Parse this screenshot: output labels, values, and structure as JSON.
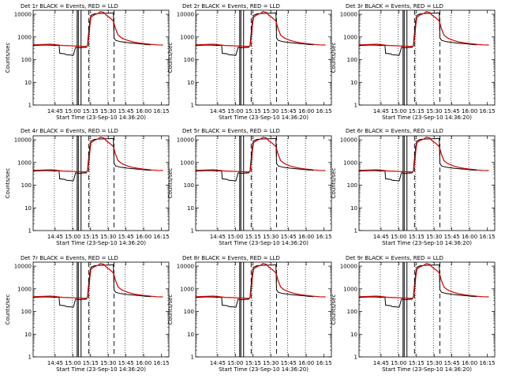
{
  "page": {
    "colors": {
      "events": "#000000",
      "lld": "#d40000",
      "axes": "#000000",
      "background": "#ffffff"
    }
  },
  "chart_data": [
    {
      "type": "line",
      "title": "Det 1r BLACK = Events, RED = LLD"
    },
    {
      "type": "line",
      "title": "Det 2r BLACK = Events, RED = LLD"
    },
    {
      "type": "line",
      "title": "Det 3r BLACK = Events, RED = LLD"
    },
    {
      "type": "line",
      "title": "Det 4r BLACK = Events, RED = LLD"
    },
    {
      "type": "line",
      "title": "Det 5r BLACK = Events, RED = LLD"
    },
    {
      "type": "line",
      "title": "Det 6r BLACK = Events, RED = LLD"
    },
    {
      "type": "line",
      "title": "Det 7r BLACK = Events, RED = LLD"
    },
    {
      "type": "line",
      "title": "Det 8r BLACK = Events, RED = LLD"
    },
    {
      "type": "line",
      "title": "Det 9r BLACK = Events, RED = LLD"
    }
  ],
  "shared": {
    "ylabel": "Counts/sec",
    "xlabel": "Start Time (23-Sep-10 14:36:20)",
    "yscale": "log",
    "ylim": [
      1,
      15000
    ],
    "yticks": [
      1,
      10,
      100,
      1000,
      10000
    ],
    "ytick_labels": [
      "1",
      "10",
      "100",
      "1000",
      "10000"
    ],
    "xlim_minutes": [
      -10,
      105
    ],
    "xticks_minutes": [
      8.67,
      23.67,
      38.67,
      53.67,
      68.67,
      83.67,
      98.67
    ],
    "xtick_labels": [
      "14:45",
      "15:00",
      "15:15",
      "15:30",
      "15:45",
      "16:00",
      "16:15"
    ],
    "dotted_lines_minutes": [
      8,
      23,
      38,
      53,
      68,
      83
    ],
    "dashed_lines_minutes": [
      37,
      58.5
    ],
    "solid_lines_minutes": [
      27.3,
      28.3,
      30.6
    ],
    "events": {
      "x": [
        -10,
        0,
        12,
        12.5,
        17,
        18,
        22,
        24,
        26,
        28,
        30,
        31,
        33,
        35,
        36,
        37,
        38,
        39,
        42,
        45,
        50,
        55,
        58,
        58.5,
        60,
        64,
        70,
        75,
        80,
        85,
        90
      ],
      "y": [
        420,
        440,
        420,
        190,
        180,
        165,
        160,
        155,
        350,
        340,
        330,
        340,
        345,
        350,
        420,
        1500,
        5000,
        9000,
        10500,
        10800,
        11000,
        11200,
        11500,
        900,
        700,
        620,
        560,
        530,
        500,
        470,
        450
      ]
    },
    "lld": {
      "x": [
        -10,
        5,
        15,
        20,
        25,
        30,
        35,
        36,
        37,
        38,
        39,
        42,
        45,
        47,
        50,
        52,
        55,
        58,
        60,
        62,
        65,
        70,
        75,
        80,
        85,
        90,
        95,
        100
      ],
      "y": [
        450,
        480,
        420,
        410,
        400,
        390,
        380,
        420,
        800,
        3000,
        7500,
        9500,
        11000,
        13000,
        12000,
        9000,
        7000,
        5000,
        2200,
        1200,
        900,
        700,
        600,
        540,
        500,
        470,
        450,
        440
      ]
    }
  }
}
